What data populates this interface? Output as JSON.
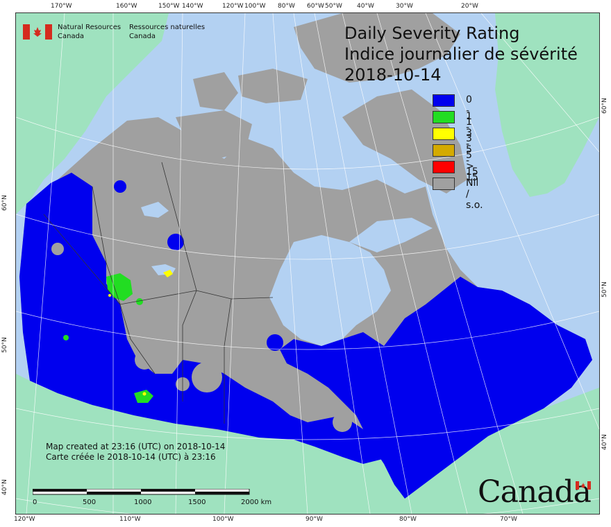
{
  "header": {
    "org_en_line1": "Natural Resources",
    "org_en_line2": "Canada",
    "org_fr_line1": "Ressources naturelles",
    "org_fr_line2": "Canada"
  },
  "map": {
    "title_en": "Daily Severity Rating",
    "title_fr": "Indice journalier de sévérité",
    "date": "2018-10-14",
    "created_en": "Map created at 23:16 (UTC) on 2018-10-14",
    "created_fr": "Carte créée le 2018-10-14 (UTC) à 23:16",
    "wordmark": "Canada",
    "colors": {
      "ocean": "#b3d1f2",
      "land_other": "#9fe2bf",
      "nil": "#a0a0a0",
      "class_0_1": "#0000ee",
      "class_1_3": "#22dd22",
      "class_3_5": "#ffff00",
      "class_5_15": "#d4aa00",
      "class_15p": "#ff0000"
    }
  },
  "legend": {
    "items": [
      {
        "label": "0 - 1",
        "color": "#0000ee"
      },
      {
        "label": "1 - 3",
        "color": "#22dd22"
      },
      {
        "label": "3 - 5",
        "color": "#ffff00"
      },
      {
        "label": "5 - 15",
        "color": "#d4aa00"
      },
      {
        "label": "> 15",
        "color": "#ff0000"
      },
      {
        "label": "Nil / s.o.",
        "color": "#a0a0a0"
      }
    ]
  },
  "graticule": {
    "top": [
      "170°W",
      "160°W",
      "150°W",
      "140°W",
      "120°W",
      "100°W",
      "80°W",
      "60°W",
      "50°W",
      "40°W",
      "30°W",
      "20°W"
    ],
    "bottom": [
      "120°W",
      "110°W",
      "100°W",
      "90°W",
      "80°W",
      "70°W"
    ],
    "left": [
      "60°N",
      "50°N",
      "40°N"
    ],
    "right": [
      "60°N",
      "50°N",
      "40°N"
    ]
  },
  "scalebar": {
    "labels": [
      "0",
      "500",
      "1000",
      "1500",
      "2000 km"
    ]
  }
}
